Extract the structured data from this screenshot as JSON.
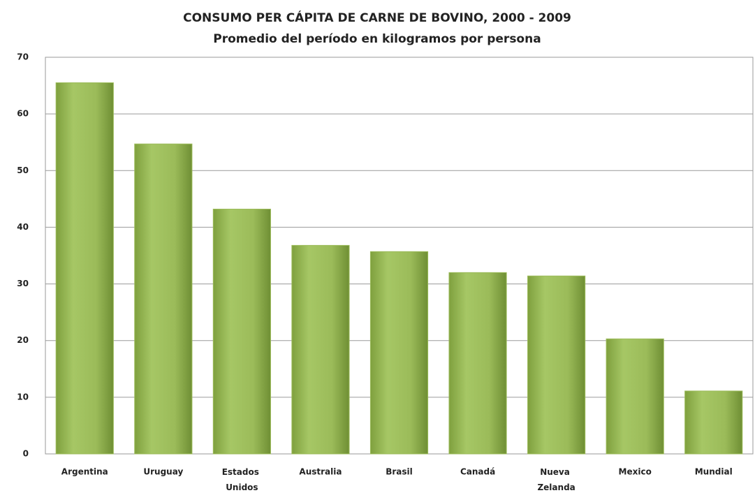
{
  "chart_data": {
    "type": "bar",
    "title": "CONSUMO PER CÁPITA DE CARNE DE BOVINO, 2000 - 2009",
    "subtitle": "Promedio del período en kilogramos por persona",
    "categories": [
      "Argentina",
      "Uruguay",
      "Estados Unidos",
      "Australia",
      "Brasil",
      "Canadá",
      "Nueva Zelanda",
      "Mexico",
      "Mundial"
    ],
    "values": [
      65.5,
      54.7,
      43.2,
      36.8,
      35.7,
      32,
      31.4,
      20.3,
      11.1
    ],
    "color": "#9bbb59",
    "ylim": [
      0,
      70
    ],
    "yticks": [
      0,
      10,
      20,
      30,
      40,
      50,
      60,
      70
    ],
    "grid": true
  }
}
